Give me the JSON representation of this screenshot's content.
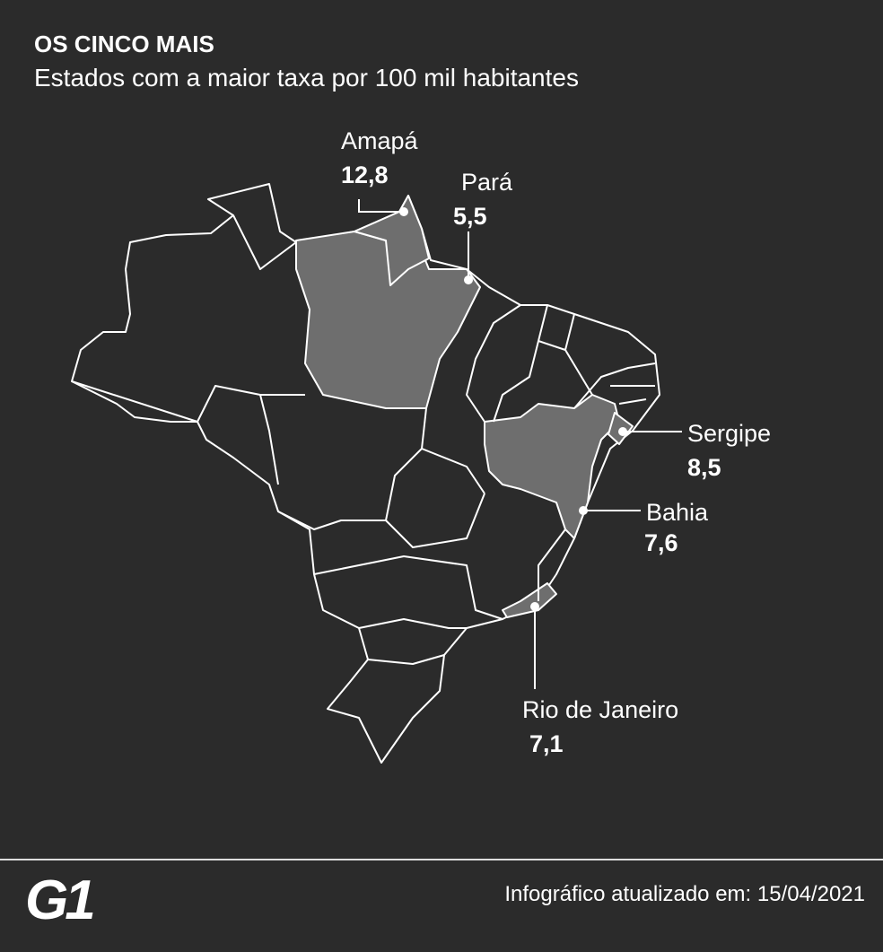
{
  "header": {
    "title": "OS CINCO MAIS",
    "subtitle": "Estados com a maior taxa por 100 mil habitantes"
  },
  "labels": [
    {
      "name": "Amapá",
      "value": "12,8"
    },
    {
      "name": "Pará",
      "value": "5,5"
    },
    {
      "name": "Sergipe",
      "value": "8,5"
    },
    {
      "name": "Bahia",
      "value": "7,6"
    },
    {
      "name": "Rio de Janeiro",
      "value": "7,1"
    }
  ],
  "footer": {
    "logo": "G1",
    "note": "Infográfico atualizado em: 15/04/2021"
  }
}
